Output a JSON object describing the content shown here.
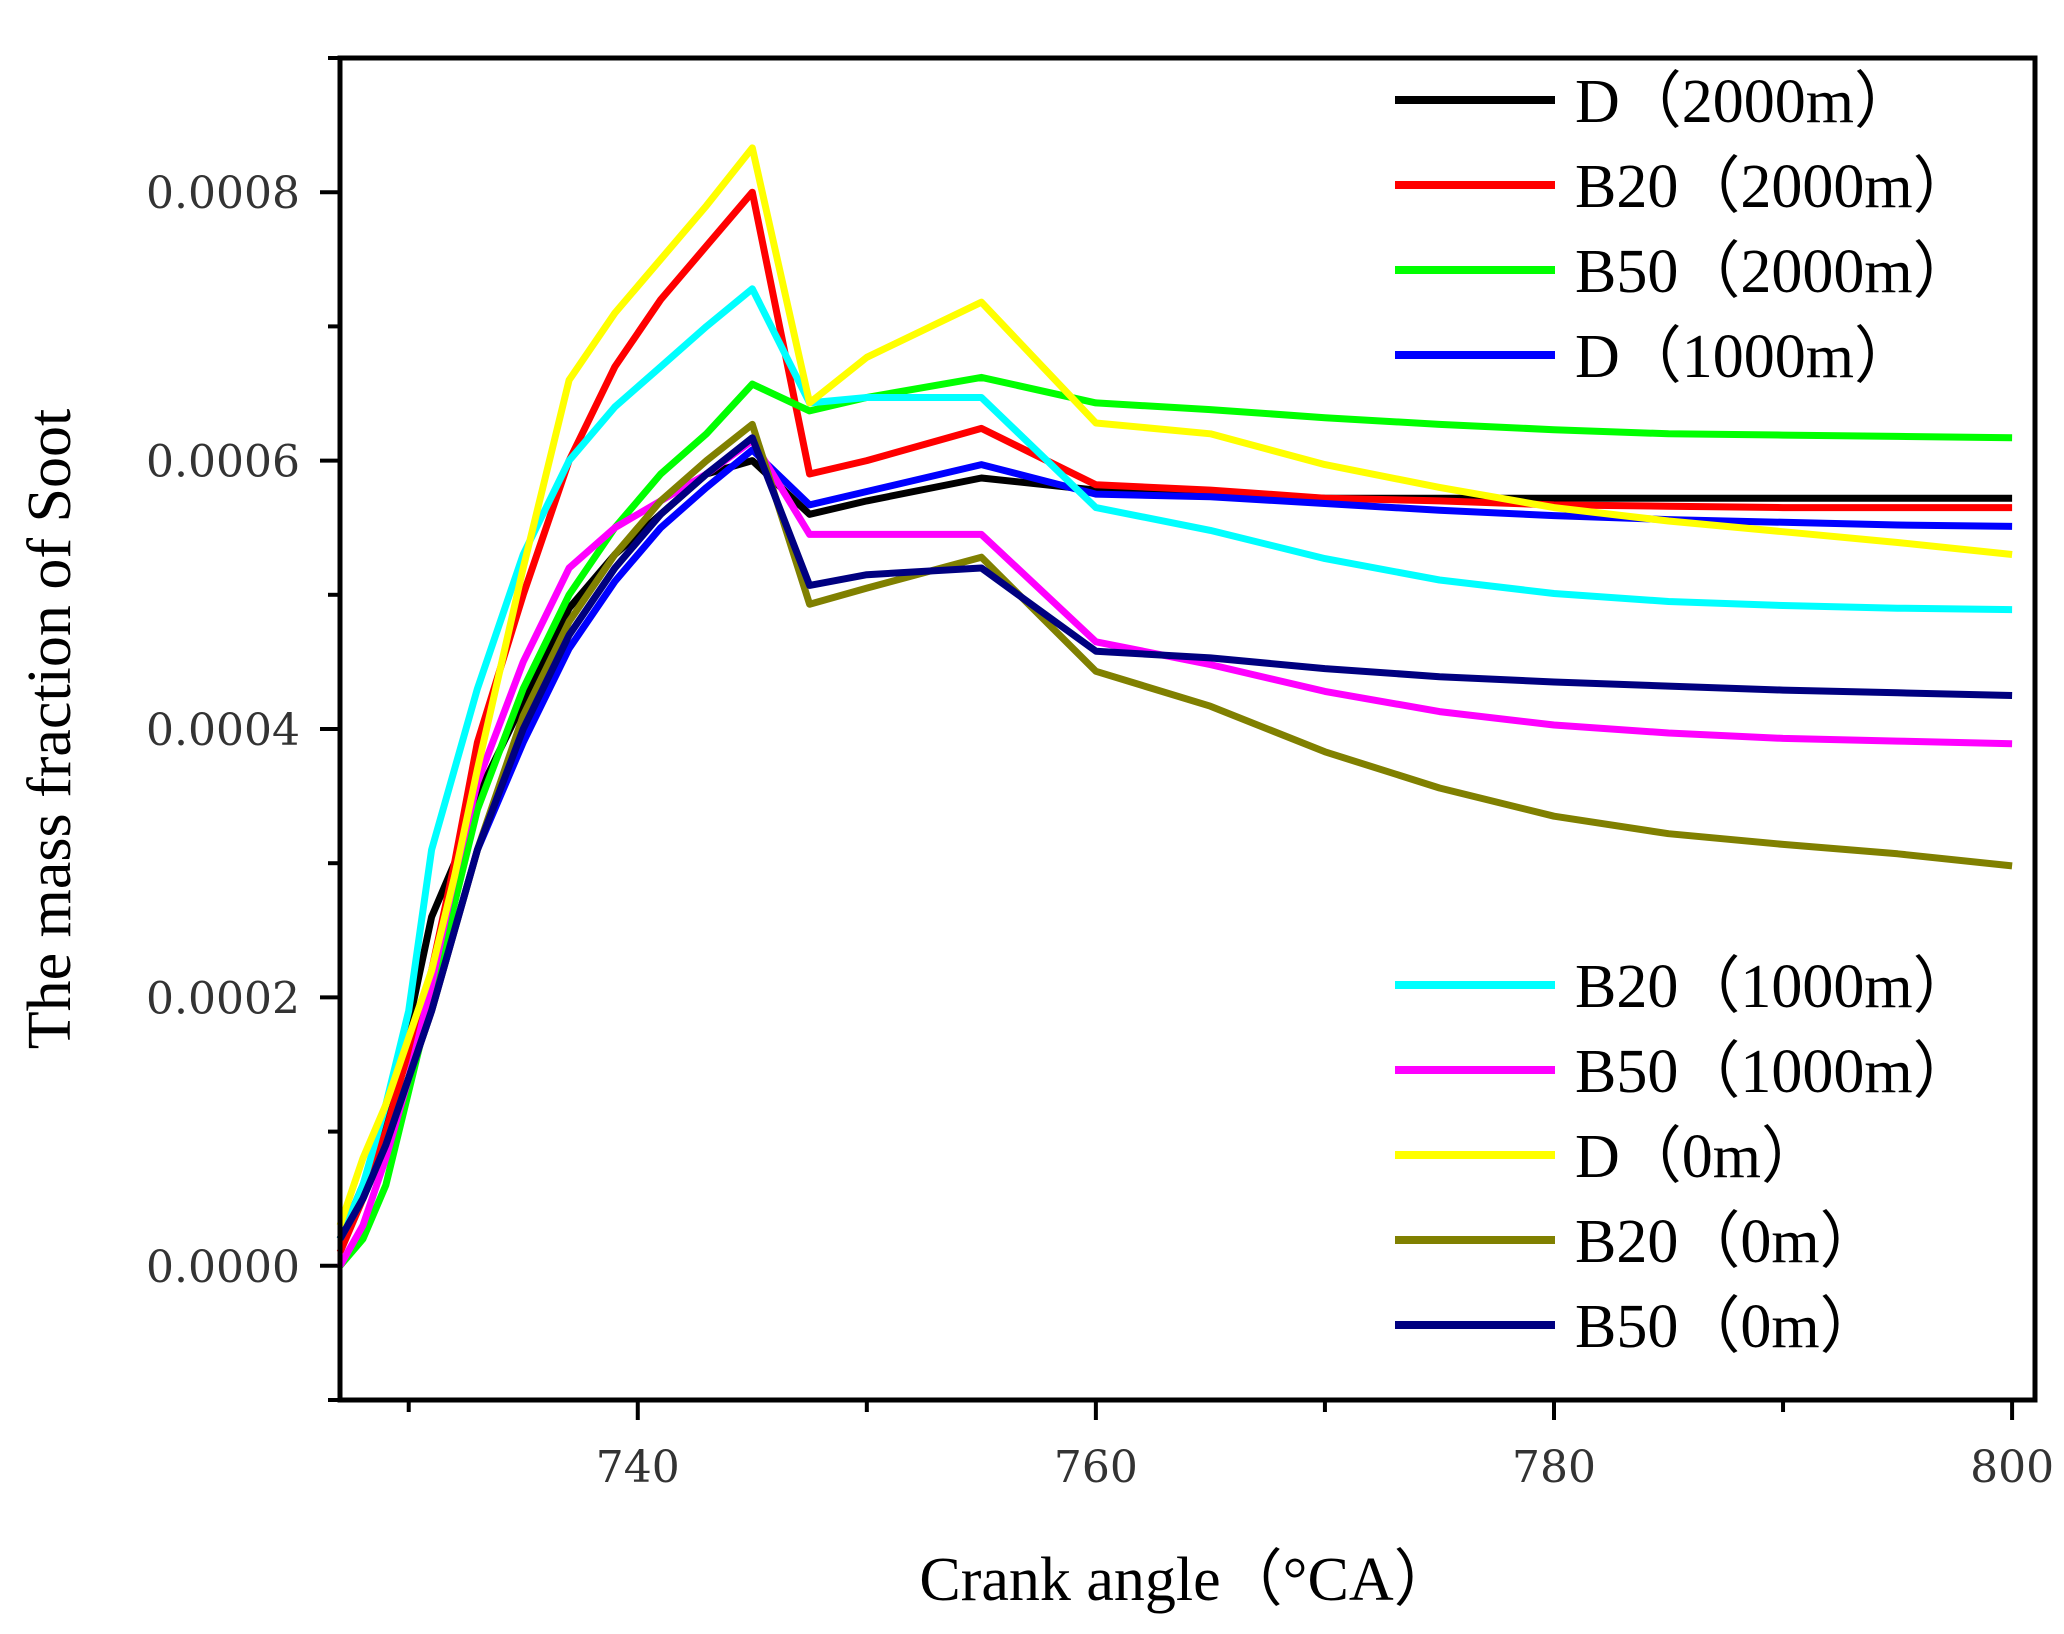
{
  "chart_data": {
    "type": "line",
    "title": "",
    "xlabel": "Crank angle（°CA）",
    "ylabel": "The mass fraction of Soot",
    "xlim": [
      727,
      801
    ],
    "ylim": [
      -0.0001,
      0.0009
    ],
    "xticks": [
      740,
      760,
      780,
      800
    ],
    "xtick_labels": [
      "740",
      "760",
      "780",
      "800"
    ],
    "yticks": [
      0.0,
      0.0002,
      0.0004,
      0.0006,
      0.0008
    ],
    "ytick_labels": [
      "0.0000",
      "0.0002",
      "0.0004",
      "0.0006",
      "0.0008"
    ],
    "legend": [
      "top-right",
      "bottom-right"
    ],
    "series": [
      {
        "name": "D（2000m）",
        "color": "#000000",
        "legend_group": 0,
        "x": [
          727,
          728,
          729,
          730,
          731,
          732,
          733,
          735,
          737,
          739,
          741,
          743,
          745,
          747.5,
          750,
          755,
          760,
          765,
          770,
          775,
          780,
          785,
          790,
          795,
          800
        ],
        "y": [
          2e-05,
          6e-05,
          0.00011,
          0.00018,
          0.00026,
          0.0003,
          0.00035,
          0.00042,
          0.00049,
          0.00053,
          0.00056,
          0.00059,
          0.0006,
          0.00056,
          0.00057,
          0.000587,
          0.000578,
          0.000575,
          0.000572,
          0.000572,
          0.000572,
          0.000572,
          0.000572,
          0.000572,
          0.000572
        ]
      },
      {
        "name": "B20（2000m）",
        "color": "#ff0000",
        "legend_group": 0,
        "x": [
          727,
          728,
          729,
          730,
          731,
          732,
          733,
          735,
          737,
          739,
          741,
          743,
          745,
          747.5,
          750,
          755,
          760,
          765,
          770,
          775,
          780,
          785,
          790,
          795,
          800
        ],
        "y": [
          1e-05,
          5e-05,
          0.0001,
          0.00016,
          0.00022,
          0.0003,
          0.00039,
          0.0005,
          0.0006,
          0.00067,
          0.00072,
          0.00076,
          0.0008,
          0.00059,
          0.0006,
          0.000624,
          0.000582,
          0.000578,
          0.000572,
          0.00057,
          0.000567,
          0.000566,
          0.000565,
          0.000565,
          0.000565
        ]
      },
      {
        "name": "B50（2000m）",
        "color": "#00ff00",
        "legend_group": 0,
        "x": [
          727,
          728,
          729,
          730,
          731,
          732,
          733,
          735,
          737,
          739,
          741,
          743,
          745,
          747.5,
          750,
          755,
          760,
          765,
          770,
          775,
          780,
          785,
          790,
          795,
          800
        ],
        "y": [
          0.0,
          2e-05,
          6e-05,
          0.00013,
          0.0002,
          0.00027,
          0.00034,
          0.00043,
          0.0005,
          0.00055,
          0.00059,
          0.00062,
          0.000657,
          0.000637,
          0.000647,
          0.000662,
          0.000643,
          0.000638,
          0.000632,
          0.000627,
          0.000623,
          0.00062,
          0.000619,
          0.000618,
          0.000617
        ]
      },
      {
        "name": "D（1000m）",
        "color": "#0000ff",
        "legend_group": 0,
        "x": [
          727,
          728,
          729,
          730,
          731,
          732,
          733,
          735,
          737,
          739,
          741,
          743,
          745,
          747.5,
          750,
          755,
          760,
          765,
          770,
          775,
          780,
          785,
          790,
          795,
          800
        ],
        "y": [
          2e-05,
          5e-05,
          9e-05,
          0.00014,
          0.00019,
          0.00025,
          0.00031,
          0.00039,
          0.00046,
          0.00051,
          0.00055,
          0.00058,
          0.000608,
          0.000567,
          0.000577,
          0.000597,
          0.000575,
          0.000573,
          0.000568,
          0.000563,
          0.000559,
          0.000556,
          0.000554,
          0.000552,
          0.000551
        ]
      },
      {
        "name": "B20（1000m）",
        "color": "#00ffff",
        "legend_group": 1,
        "x": [
          727,
          728,
          729,
          730,
          731,
          732,
          733,
          735,
          737,
          739,
          741,
          743,
          745,
          747.5,
          750,
          755,
          760,
          765,
          770,
          775,
          780,
          785,
          790,
          795,
          800
        ],
        "y": [
          2e-05,
          6e-05,
          0.00012,
          0.00019,
          0.00031,
          0.00037,
          0.00043,
          0.00053,
          0.0006,
          0.00064,
          0.00067,
          0.0007,
          0.000728,
          0.000643,
          0.000647,
          0.000647,
          0.000565,
          0.000548,
          0.000527,
          0.000511,
          0.000501,
          0.000495,
          0.000492,
          0.00049,
          0.000489
        ]
      },
      {
        "name": "B50（1000m）",
        "color": "#ff00ff",
        "legend_group": 1,
        "x": [
          727,
          728,
          729,
          730,
          731,
          732,
          733,
          735,
          737,
          739,
          741,
          743,
          745,
          747.5,
          750,
          755,
          760,
          765,
          770,
          775,
          780,
          785,
          790,
          795,
          800
        ],
        "y": [
          0.0,
          3e-05,
          8e-05,
          0.00014,
          0.00021,
          0.00029,
          0.00036,
          0.00045,
          0.00052,
          0.00055,
          0.00057,
          0.00059,
          0.000615,
          0.000545,
          0.000545,
          0.000545,
          0.000465,
          0.000448,
          0.000428,
          0.000413,
          0.000403,
          0.000397,
          0.000393,
          0.000391,
          0.000389
        ]
      },
      {
        "name": "D（0m）",
        "color": "#ffff00",
        "legend_group": 1,
        "x": [
          727,
          728,
          729,
          730,
          731,
          732,
          733,
          735,
          737,
          739,
          741,
          743,
          745,
          747.5,
          750,
          755,
          760,
          765,
          770,
          775,
          780,
          785,
          790,
          795,
          800
        ],
        "y": [
          3e-05,
          8e-05,
          0.00012,
          0.00017,
          0.00022,
          0.00029,
          0.00037,
          0.00052,
          0.00066,
          0.00071,
          0.00075,
          0.00079,
          0.000833,
          0.000643,
          0.000677,
          0.000718,
          0.000628,
          0.00062,
          0.000597,
          0.00058,
          0.000565,
          0.000555,
          0.000547,
          0.000539,
          0.00053
        ]
      },
      {
        "name": "B20（0m）",
        "color": "#808000",
        "legend_group": 1,
        "x": [
          727,
          728,
          729,
          730,
          731,
          732,
          733,
          735,
          737,
          739,
          741,
          743,
          745,
          747.5,
          750,
          755,
          760,
          765,
          770,
          775,
          780,
          785,
          790,
          795,
          800
        ],
        "y": [
          2e-05,
          5e-05,
          9e-05,
          0.00014,
          0.00019,
          0.00025,
          0.00031,
          0.00041,
          0.00048,
          0.00053,
          0.00057,
          0.0006,
          0.000627,
          0.000493,
          0.000505,
          0.000528,
          0.000443,
          0.000417,
          0.000383,
          0.000356,
          0.000335,
          0.000322,
          0.000314,
          0.000307,
          0.000298
        ]
      },
      {
        "name": "B50（0m）",
        "color": "#000080",
        "legend_group": 1,
        "x": [
          727,
          728,
          729,
          730,
          731,
          732,
          733,
          735,
          737,
          739,
          741,
          743,
          745,
          747.5,
          750,
          755,
          760,
          765,
          770,
          775,
          780,
          785,
          790,
          795,
          800
        ],
        "y": [
          2e-05,
          5e-05,
          9e-05,
          0.00014,
          0.00019,
          0.00025,
          0.00031,
          0.0004,
          0.00047,
          0.00052,
          0.00056,
          0.00059,
          0.000617,
          0.000507,
          0.000515,
          0.00052,
          0.000458,
          0.000453,
          0.000445,
          0.000439,
          0.000435,
          0.000432,
          0.000429,
          0.000427,
          0.000425
        ]
      }
    ]
  }
}
